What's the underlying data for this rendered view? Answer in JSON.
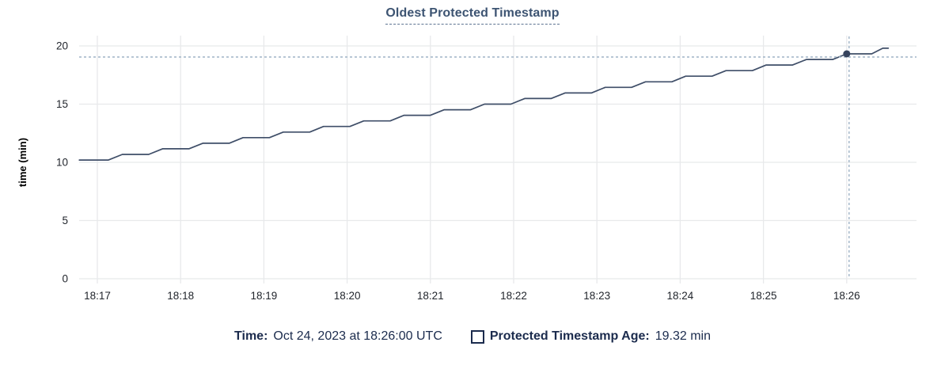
{
  "title": "Oldest Protected Timestamp",
  "colors": {
    "title_text": "#3d5472",
    "title_underline": "#5d7392",
    "legend_text": "#1b2b4d",
    "line": "#3f4e68",
    "gridline": "#e8e9eb",
    "axis_text": "#22262d",
    "axis_title_text": "#000000",
    "crosshair": "#9fb3c6",
    "hover_dot": "#35425c",
    "background": "#ffffff"
  },
  "tooltip": {
    "time_label": "Time:",
    "time_value": "Oct 24, 2023 at 18:26:00 UTC",
    "age_label": "Protected Timestamp Age:",
    "age_value": "19.32 min"
  },
  "chart_data": {
    "type": "line",
    "title": "Oldest Protected Timestamp",
    "xlabel": "",
    "ylabel": "time (min)",
    "ylim": [
      0,
      20
    ],
    "yticks": [
      0,
      5,
      10,
      15,
      20
    ],
    "xtick_labels": [
      "18:17",
      "18:18",
      "18:19",
      "18:20",
      "18:21",
      "18:22",
      "18:23",
      "18:24",
      "18:25",
      "18:26"
    ],
    "xtick_interval_seconds": 60,
    "x_unit": "seconds since 18:17:00 UTC",
    "x_range_seconds": [
      -13,
      590
    ],
    "grid": true,
    "legend_position": "bottom",
    "series": [
      {
        "name": "Protected Timestamp Age",
        "unit": "min",
        "points": [
          [
            -13,
            10.2
          ],
          [
            8,
            10.2
          ],
          [
            18,
            10.68
          ],
          [
            37,
            10.68
          ],
          [
            47,
            11.16
          ],
          [
            66,
            11.16
          ],
          [
            76,
            11.64
          ],
          [
            95,
            11.64
          ],
          [
            105,
            12.12
          ],
          [
            124,
            12.12
          ],
          [
            134,
            12.6
          ],
          [
            153,
            12.6
          ],
          [
            163,
            13.08
          ],
          [
            182,
            13.08
          ],
          [
            192,
            13.56
          ],
          [
            211,
            13.56
          ],
          [
            221,
            14.04
          ],
          [
            240,
            14.04
          ],
          [
            250,
            14.52
          ],
          [
            269,
            14.52
          ],
          [
            279,
            15.0
          ],
          [
            298,
            15.0
          ],
          [
            308,
            15.48
          ],
          [
            327,
            15.48
          ],
          [
            337,
            15.96
          ],
          [
            356,
            15.96
          ],
          [
            366,
            16.44
          ],
          [
            385,
            16.44
          ],
          [
            395,
            16.92
          ],
          [
            414,
            16.92
          ],
          [
            424,
            17.4
          ],
          [
            443,
            17.4
          ],
          [
            453,
            17.88
          ],
          [
            472,
            17.88
          ],
          [
            482,
            18.36
          ],
          [
            501,
            18.36
          ],
          [
            511,
            18.84
          ],
          [
            530,
            18.84
          ],
          [
            540,
            19.32
          ],
          [
            558,
            19.32
          ],
          [
            566,
            19.8
          ],
          [
            570,
            19.8
          ]
        ]
      }
    ],
    "hover_point": {
      "t_seconds": 540,
      "value_min": 19.32,
      "time_label": "Oct 24, 2023 at 18:26:00 UTC",
      "value_label": "19.32 min"
    }
  }
}
